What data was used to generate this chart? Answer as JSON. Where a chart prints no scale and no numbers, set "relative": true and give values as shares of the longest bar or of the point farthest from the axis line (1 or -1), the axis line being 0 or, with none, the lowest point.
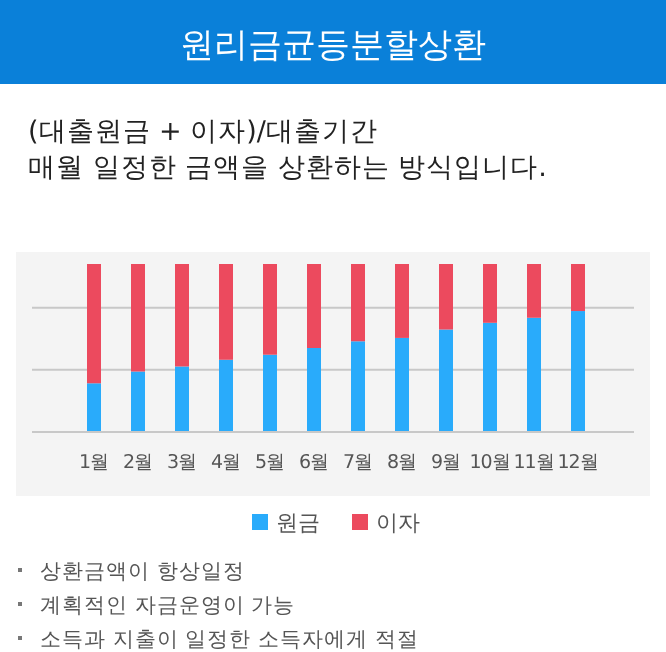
{
  "chart_data": {
    "type": "bar",
    "title": "원리금균등분할상환",
    "subtitle": "(대출원금 + 이자)/대출기간\n매월 일정한 금액을 상환하는 방식입니다.",
    "categories": [
      "1월",
      "2월",
      "3월",
      "4월",
      "5월",
      "6월",
      "7월",
      "8월",
      "9월",
      "10월",
      "11월",
      "12월"
    ],
    "stacked": true,
    "relative": true,
    "legend": "bottom",
    "ref_lines": [
      {
        "axis": "y",
        "value": 0.37,
        "color": "#c8c8c8"
      },
      {
        "axis": "y",
        "value": 0.74,
        "color": "#c8c8c8"
      }
    ],
    "series": [
      {
        "name": "원금",
        "color": "#29abfb",
        "values": [
          0.29,
          0.36,
          0.39,
          0.43,
          0.46,
          0.5,
          0.54,
          0.56,
          0.61,
          0.65,
          0.68,
          0.72
        ]
      },
      {
        "name": "이자",
        "color": "#ec4a5e",
        "values": [
          0.71,
          0.64,
          0.61,
          0.57,
          0.54,
          0.5,
          0.46,
          0.44,
          0.39,
          0.35,
          0.32,
          0.28
        ]
      }
    ],
    "annotations": [
      "상환금액이 항상일정",
      "계획적인 자금운영이 가능",
      "소득과 지출이 일정한 소득자에게 적절"
    ]
  }
}
